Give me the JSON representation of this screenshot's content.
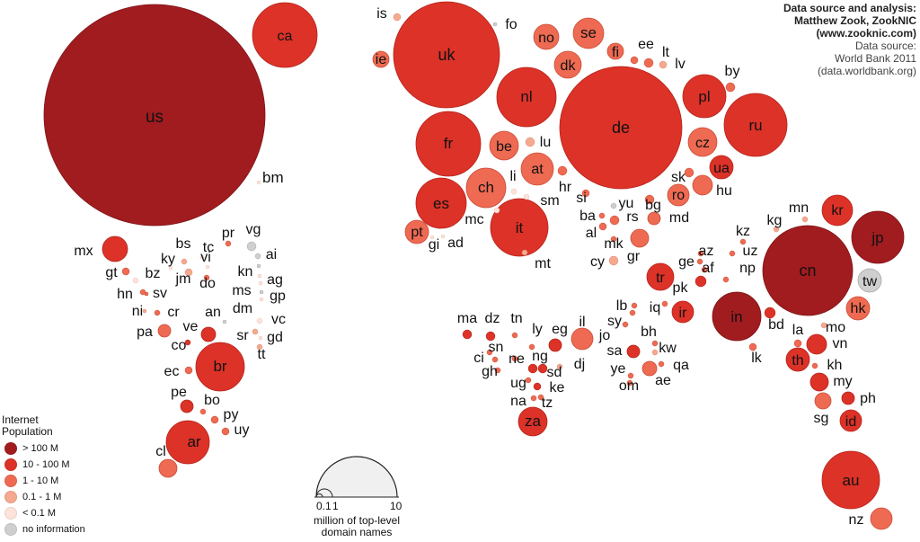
{
  "credits": {
    "line1": "Data source and analysis:",
    "line2": "Matthew Zook, ZookNIC",
    "line3": "(www.zooknic.com)",
    "line4": "Data source:",
    "line5": "World Bank 2011",
    "line6": "(data.worldbank.org)"
  },
  "legend": {
    "title_1": "Internet",
    "title_2": "Population",
    "items": [
      {
        "label": "> 100 M",
        "color": "#a11c1f"
      },
      {
        "label": "10 - 100 M",
        "color": "#dc3228"
      },
      {
        "label": "1 - 10 M",
        "color": "#ee6a52"
      },
      {
        "label": "0.1 - 1 M",
        "color": "#f5a98f"
      },
      {
        "label": "< 0.1 M",
        "color": "#fde3da"
      },
      {
        "label": "no information",
        "color": "#cfcfcf"
      }
    ]
  },
  "scale": {
    "tick_small": "0.1",
    "tick_mid": "1",
    "tick_large": "10",
    "caption_1": "million of top-level",
    "caption_2": "domain names"
  },
  "countries": [
    {
      "code": "us",
      "cls": 0
    },
    {
      "code": "ca",
      "cls": 1
    },
    {
      "code": "bm",
      "cls": 4
    },
    {
      "code": "mx",
      "cls": 1
    },
    {
      "code": "gt",
      "cls": 2
    },
    {
      "code": "bz",
      "cls": 4
    },
    {
      "code": "hn",
      "cls": 2
    },
    {
      "code": "sv",
      "cls": 2
    },
    {
      "code": "ni",
      "cls": 3
    },
    {
      "code": "cr",
      "cls": 2
    },
    {
      "code": "pa",
      "cls": 2
    },
    {
      "code": "co",
      "cls": 1
    },
    {
      "code": "ve",
      "cls": 1
    },
    {
      "code": "an",
      "cls": 5
    },
    {
      "code": "br",
      "cls": 1
    },
    {
      "code": "ec",
      "cls": 2
    },
    {
      "code": "pe",
      "cls": 1
    },
    {
      "code": "bo",
      "cls": 2
    },
    {
      "code": "py",
      "cls": 2
    },
    {
      "code": "uy",
      "cls": 2
    },
    {
      "code": "ar",
      "cls": 1
    },
    {
      "code": "cl",
      "cls": 2
    },
    {
      "code": "bs",
      "cls": 3
    },
    {
      "code": "ky",
      "cls": 4
    },
    {
      "code": "jm",
      "cls": 3
    },
    {
      "code": "tc",
      "cls": 4
    },
    {
      "code": "vi",
      "cls": 4
    },
    {
      "code": "do",
      "cls": 2
    },
    {
      "code": "pr",
      "cls": 2
    },
    {
      "code": "vg",
      "cls": 5
    },
    {
      "code": "ai",
      "cls": 5
    },
    {
      "code": "kn",
      "cls": 5
    },
    {
      "code": "ag",
      "cls": 4
    },
    {
      "code": "ms",
      "cls": 4
    },
    {
      "code": "gp",
      "cls": 5
    },
    {
      "code": "dm",
      "cls": 4
    },
    {
      "code": "vc",
      "cls": 4
    },
    {
      "code": "sr",
      "cls": 3
    },
    {
      "code": "gd",
      "cls": 4
    },
    {
      "code": "tt",
      "cls": 3
    },
    {
      "code": "uk",
      "cls": 1
    },
    {
      "code": "ie",
      "cls": 2
    },
    {
      "code": "is",
      "cls": 3
    },
    {
      "code": "fo",
      "cls": 5
    },
    {
      "code": "no",
      "cls": 2
    },
    {
      "code": "se",
      "cls": 2
    },
    {
      "code": "dk",
      "cls": 2
    },
    {
      "code": "fi",
      "cls": 2
    },
    {
      "code": "ee",
      "cls": 2
    },
    {
      "code": "lt",
      "cls": 2
    },
    {
      "code": "lv",
      "cls": 3
    },
    {
      "code": "by",
      "cls": 2
    },
    {
      "code": "nl",
      "cls": 1
    },
    {
      "code": "de",
      "cls": 1
    },
    {
      "code": "pl",
      "cls": 1
    },
    {
      "code": "ru",
      "cls": 1
    },
    {
      "code": "fr",
      "cls": 1
    },
    {
      "code": "be",
      "cls": 2
    },
    {
      "code": "lu",
      "cls": 3
    },
    {
      "code": "cz",
      "cls": 2
    },
    {
      "code": "ua",
      "cls": 1
    },
    {
      "code": "at",
      "cls": 2
    },
    {
      "code": "ch",
      "cls": 2
    },
    {
      "code": "li",
      "cls": 4
    },
    {
      "code": "hr",
      "cls": 2
    },
    {
      "code": "sk",
      "cls": 2
    },
    {
      "code": "hu",
      "cls": 2
    },
    {
      "code": "si",
      "cls": 2
    },
    {
      "code": "yu",
      "cls": 5
    },
    {
      "code": "bg",
      "cls": 2
    },
    {
      "code": "ro",
      "cls": 2
    },
    {
      "code": "md",
      "cls": 2
    },
    {
      "code": "es",
      "cls": 1
    },
    {
      "code": "sm",
      "cls": 4
    },
    {
      "code": "it",
      "cls": 1
    },
    {
      "code": "ba",
      "cls": 2
    },
    {
      "code": "rs",
      "cls": 2
    },
    {
      "code": "mc",
      "cls": 4
    },
    {
      "code": "pt",
      "cls": 2
    },
    {
      "code": "al",
      "cls": 2
    },
    {
      "code": "mk",
      "cls": 2
    },
    {
      "code": "gi",
      "cls": 4
    },
    {
      "code": "ad",
      "cls": 4
    },
    {
      "code": "cy",
      "cls": 3
    },
    {
      "code": "gr",
      "cls": 2
    },
    {
      "code": "mt",
      "cls": 3
    },
    {
      "code": "kz",
      "cls": 2
    },
    {
      "code": "kg",
      "cls": 3
    },
    {
      "code": "mn",
      "cls": 3
    },
    {
      "code": "kr",
      "cls": 1
    },
    {
      "code": "jp",
      "cls": 0
    },
    {
      "code": "az",
      "cls": 2
    },
    {
      "code": "uz",
      "cls": 2
    },
    {
      "code": "ge",
      "cls": 2
    },
    {
      "code": "af",
      "cls": 2
    },
    {
      "code": "np",
      "cls": 2
    },
    {
      "code": "tr",
      "cls": 1
    },
    {
      "code": "pk",
      "cls": 1
    },
    {
      "code": "cn",
      "cls": 0
    },
    {
      "code": "tw",
      "cls": 5
    },
    {
      "code": "in",
      "cls": 0
    },
    {
      "code": "ir",
      "cls": 1
    },
    {
      "code": "iq",
      "cls": 2
    },
    {
      "code": "lb",
      "cls": 2
    },
    {
      "code": "sy",
      "cls": 2
    },
    {
      "code": "jo",
      "cls": 2
    },
    {
      "code": "il",
      "cls": 2
    },
    {
      "code": "hk",
      "cls": 2
    },
    {
      "code": "bd",
      "cls": 1
    },
    {
      "code": "la",
      "cls": 2
    },
    {
      "code": "mo",
      "cls": 3
    },
    {
      "code": "vn",
      "cls": 1
    },
    {
      "code": "kw",
      "cls": 2
    },
    {
      "code": "sa",
      "cls": 1
    },
    {
      "code": "bh",
      "cls": 3
    },
    {
      "code": "lk",
      "cls": 2
    },
    {
      "code": "th",
      "cls": 1
    },
    {
      "code": "kh",
      "cls": 2
    },
    {
      "code": "qa",
      "cls": 2
    },
    {
      "code": "ae",
      "cls": 2
    },
    {
      "code": "ye",
      "cls": 2
    },
    {
      "code": "om",
      "cls": 2
    },
    {
      "code": "my",
      "cls": 1
    },
    {
      "code": "ph",
      "cls": 1
    },
    {
      "code": "sg",
      "cls": 2
    },
    {
      "code": "id",
      "cls": 1
    },
    {
      "code": "au",
      "cls": 1
    },
    {
      "code": "nz",
      "cls": 2
    },
    {
      "code": "ma",
      "cls": 1
    },
    {
      "code": "dz",
      "cls": 1
    },
    {
      "code": "tn",
      "cls": 2
    },
    {
      "code": "ly",
      "cls": 2
    },
    {
      "code": "eg",
      "cls": 1
    },
    {
      "code": "sn",
      "cls": 2
    },
    {
      "code": "ci",
      "cls": 2
    },
    {
      "code": "ne",
      "cls": 2
    },
    {
      "code": "ng",
      "cls": 1
    },
    {
      "code": "gh",
      "cls": 2
    },
    {
      "code": "sd",
      "cls": 1
    },
    {
      "code": "dj",
      "cls": 3
    },
    {
      "code": "ug",
      "cls": 2
    },
    {
      "code": "ke",
      "cls": 1
    },
    {
      "code": "na",
      "cls": 2
    },
    {
      "code": "tz",
      "cls": 2
    },
    {
      "code": "za",
      "cls": 1
    }
  ]
}
